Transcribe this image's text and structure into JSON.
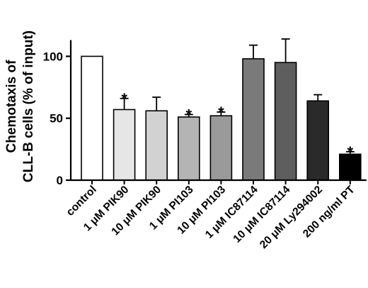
{
  "chart_data": {
    "type": "bar",
    "title": "",
    "xlabel": "",
    "ylabel_lines": [
      "Chemotaxis of",
      "CLL-B cells (% of input)"
    ],
    "ylim": [
      0,
      120
    ],
    "yticks": [
      0,
      50,
      100
    ],
    "grid": false,
    "categories": [
      "control",
      "1 μM PIK90",
      "10 μM PIK90",
      "1 μM PI103",
      "10 μM PI103",
      "1 μM IC87114",
      "10 μM IC87114",
      "20 μM Ly294002",
      "200 ng/ml PT"
    ],
    "values": [
      100,
      57,
      56,
      51,
      52,
      98,
      95,
      64,
      21
    ],
    "errors": [
      0,
      9,
      11,
      2,
      3,
      11,
      19,
      5,
      2
    ],
    "significant": [
      false,
      true,
      false,
      true,
      true,
      false,
      false,
      false,
      true
    ],
    "significance_marker": "*",
    "bar_colors": [
      "#ffffff",
      "#e6e6e6",
      "#d2d2d2",
      "#b4b4b4",
      "#9a9a9a",
      "#7a7a7a",
      "#5e5e5e",
      "#2a2a2a",
      "#000000"
    ]
  }
}
